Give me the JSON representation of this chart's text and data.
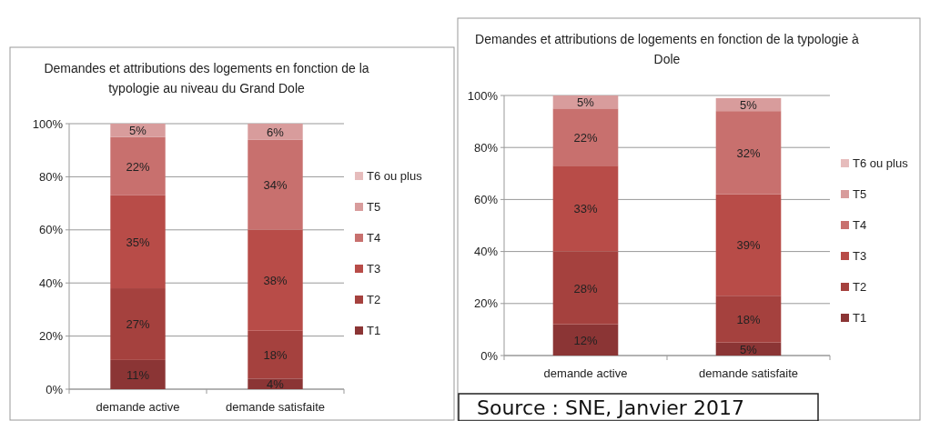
{
  "chart_data": [
    {
      "type": "bar",
      "stacked": true,
      "title": "Demandes et attributions des logements en fonction de la typologie au niveau du Grand Dole",
      "categories": [
        "demande active",
        "demande satisfaite"
      ],
      "ylim": [
        0,
        100
      ],
      "yticks": [
        {
          "value": 0,
          "label": "0%"
        },
        {
          "value": 20,
          "label": "20%"
        },
        {
          "value": 40,
          "label": "40%"
        },
        {
          "value": 60,
          "label": "60%"
        },
        {
          "value": 80,
          "label": "80%"
        },
        {
          "value": 100,
          "label": "100%"
        }
      ],
      "grid": "y",
      "legend": "right",
      "series": [
        {
          "name": "T1",
          "color": "#8b3535",
          "values": [
            11,
            4
          ],
          "value_labels": [
            "11%",
            "4%"
          ]
        },
        {
          "name": "T2",
          "color": "#a5413e",
          "values": [
            27,
            18
          ],
          "value_labels": [
            "27%",
            "18%"
          ]
        },
        {
          "name": "T3",
          "color": "#b84c48",
          "values": [
            35,
            38
          ],
          "value_labels": [
            "35%",
            "38%"
          ]
        },
        {
          "name": "T4",
          "color": "#c8706e",
          "values": [
            22,
            34
          ],
          "value_labels": [
            "22%",
            "34%"
          ]
        },
        {
          "name": "T5",
          "color": "#d89c9c",
          "values": [
            5,
            6
          ],
          "value_labels": [
            "5%",
            "6%"
          ]
        },
        {
          "name": "T6 ou plus",
          "color": "#e6bcbc",
          "values": [
            null,
            null
          ],
          "value_labels": [
            null,
            null
          ]
        }
      ]
    },
    {
      "type": "bar",
      "stacked": true,
      "title": "Demandes et attributions de logements en fonction de la typologie à Dole",
      "categories": [
        "demande active",
        "demande satisfaite"
      ],
      "ylim": [
        0,
        100
      ],
      "yticks": [
        {
          "value": 0,
          "label": "0%"
        },
        {
          "value": 20,
          "label": "20%"
        },
        {
          "value": 40,
          "label": "40%"
        },
        {
          "value": 60,
          "label": "60%"
        },
        {
          "value": 80,
          "label": "80%"
        },
        {
          "value": 100,
          "label": "100%"
        }
      ],
      "grid": "y",
      "legend": "right",
      "annotations": [
        "Source : SNE, Janvier 2017"
      ],
      "series": [
        {
          "name": "T1",
          "color": "#8b3535",
          "values": [
            12,
            5
          ],
          "value_labels": [
            "12%",
            "5%"
          ]
        },
        {
          "name": "T2",
          "color": "#a5413e",
          "values": [
            28,
            18
          ],
          "value_labels": [
            "28%",
            "18%"
          ]
        },
        {
          "name": "T3",
          "color": "#b84c48",
          "values": [
            33,
            39
          ],
          "value_labels": [
            "33%",
            "39%"
          ]
        },
        {
          "name": "T4",
          "color": "#c8706e",
          "values": [
            22,
            32
          ],
          "value_labels": [
            "22%",
            "32%"
          ]
        },
        {
          "name": "T5",
          "color": "#d89c9c",
          "values": [
            5,
            5
          ],
          "value_labels": [
            "5%",
            "5%"
          ]
        },
        {
          "name": "T6 ou plus",
          "color": "#e6bcbc",
          "values": [
            null,
            null
          ],
          "value_labels": [
            null,
            null
          ]
        }
      ]
    }
  ]
}
